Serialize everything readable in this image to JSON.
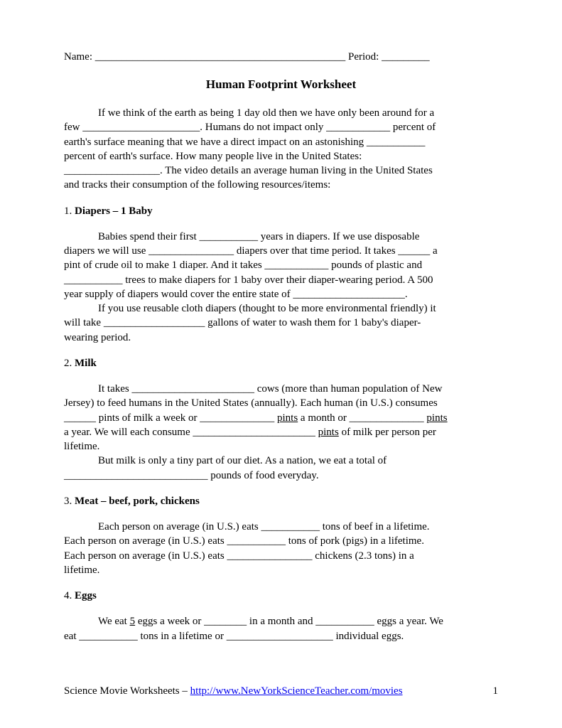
{
  "header": {
    "name_label": "Name:",
    "name_blank": " _______________________________________________ ",
    "period_label": "Period:",
    "period_blank": " _________"
  },
  "title": "Human Footprint Worksheet",
  "intro": {
    "line1a": "If we think of the earth as being 1 day old then we have only been around for a",
    "line2a": "few ______________________.  Humans do not impact only ____________ percent of",
    "line3a": "earth's surface meaning that we have a direct impact on an astonishing ___________",
    "line4a": "percent of earth's surface.  How many people live in the United States:",
    "line5a": "__________________.  The video details an average human living in the United States",
    "line6a": "and tracks their consumption of the following resources/items:"
  },
  "s1": {
    "num": "1. ",
    "name": "Diapers – 1 Baby",
    "p1a": "Babies spend their first ___________ years in diapers.  If we use disposable",
    "p1b": "diapers we will use ________________ diapers over that time period.  It takes ______ a",
    "p1c": "pint of crude oil to make 1 diaper. And it takes ____________ pounds of plastic and",
    "p1d": "___________ trees to make diapers for 1 baby over their diaper-wearing period. A 500",
    "p1e": "year supply of diapers would cover the entire state of _____________________.",
    "p2a": "If you use reusable cloth diapers (thought to be more environmental friendly) it",
    "p2b": "will take ___________________ gallons of water to wash them for 1 baby's diaper-",
    "p2c": "wearing period."
  },
  "s2": {
    "num": "2. ",
    "name": "Milk",
    "p1a": "It takes _______________________ cows (more than human population of New",
    "p1b": "Jersey) to feed humans in the United States (annually). Each human (in U.S.) consumes",
    "p1c_a": "______ pints of milk a week or ______________ ",
    "p1c_u1": "pints",
    "p1c_b": " a month or ______________ ",
    "p1c_u2": "pints",
    "p1d_a": "a year. We will each consume _______________________ ",
    "p1d_u": "pints",
    "p1d_b": " of milk per person per",
    "p1e": "lifetime.",
    "p2a": "But milk is only a tiny part of our diet. As a nation, we eat a total of",
    "p2b": "___________________________ pounds of food everyday."
  },
  "s3": {
    "num": "3. ",
    "name": "Meat – beef, pork, chickens",
    "p1a": "Each person on average (in U.S.) eats ___________ tons of beef in a lifetime.",
    "p1b": "Each person on average (in U.S.) eats ___________ tons of pork (pigs) in a lifetime.",
    "p1c": "Each person on average (in U.S.) eats ________________ chickens (2.3 tons) in a",
    "p1d": "lifetime."
  },
  "s4": {
    "num": "4. ",
    "name": "Eggs",
    "p1a_a": "We eat ",
    "p1a_u": "5",
    "p1a_b": " eggs a week or ________ in a month and ___________ eggs a year. We",
    "p1b": "eat ___________ tons in a lifetime or ____________________ individual eggs."
  },
  "footer": {
    "prefix": "Science Movie Worksheets – ",
    "link": "http://www.NewYorkScienceTeacher.com/movies",
    "page_num": "1"
  }
}
